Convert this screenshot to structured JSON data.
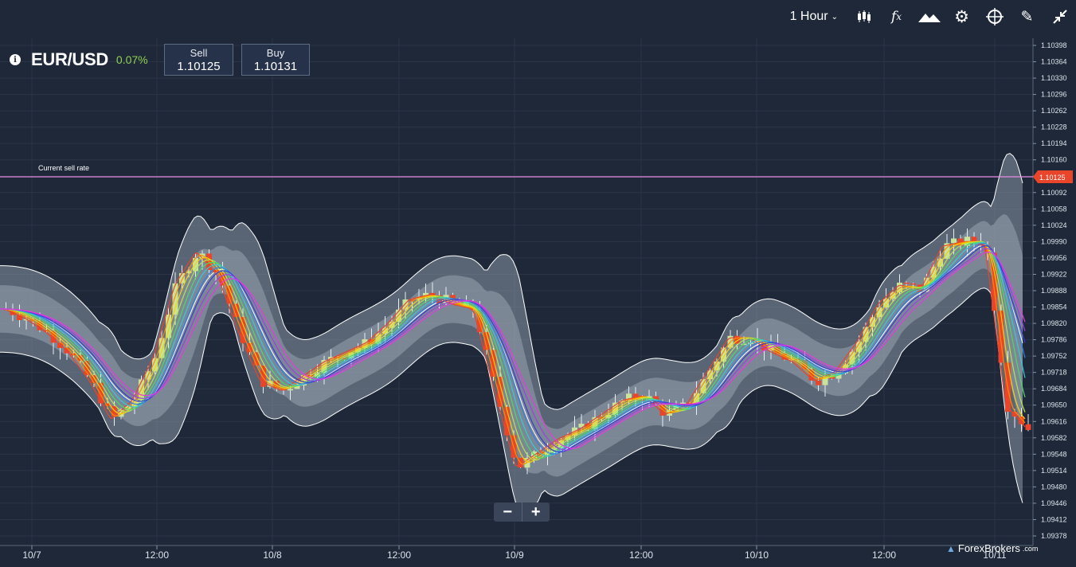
{
  "toolbar": {
    "timeframe": "1 Hour",
    "icons": [
      "candlestick-icon",
      "function-icon",
      "mountain-icon",
      "gear-icon",
      "crosshair-icon",
      "pencil-icon",
      "collapse-icon"
    ]
  },
  "instrument": {
    "symbol": "EUR/USD",
    "change": "0.07%",
    "sell_label": "Sell",
    "sell_price": "1.10125",
    "buy_label": "Buy",
    "buy_price": "1.10131"
  },
  "current_rate": {
    "label": "Current sell rate",
    "value": "1.10125",
    "line_color": "#e58ae6",
    "tag_color": "#e8452a"
  },
  "zoom": {
    "minus": "−",
    "plus": "+"
  },
  "brand": {
    "name": "ForexBrokers",
    "suffix": ".com"
  },
  "chart_data": {
    "type": "candlestick",
    "instrument": "EUR/USD",
    "interval": "1 Hour",
    "y_ticks": [
      "1.10398",
      "1.10364",
      "1.10330",
      "1.10296",
      "1.10262",
      "1.10228",
      "1.10194",
      "1.10160",
      "1.10126",
      "1.10092",
      "1.10058",
      "1.10024",
      "1.09990",
      "1.09956",
      "1.09922",
      "1.09888",
      "1.09854",
      "1.09820",
      "1.09786",
      "1.09752",
      "1.09718",
      "1.09684",
      "1.09650",
      "1.09616",
      "1.09582",
      "1.09548",
      "1.09514",
      "1.09480",
      "1.09446",
      "1.09412",
      "1.09378"
    ],
    "x_ticks": [
      "10/7",
      "12:00",
      "10/8",
      "12:00",
      "10/9",
      "12:00",
      "10/10",
      "12:00",
      "10/11"
    ],
    "ylim": [
      1.09378,
      1.10398
    ],
    "colors": {
      "up": "#c9e39a",
      "down": "#e8452a",
      "bands": "#ffffff"
    },
    "close_path": [
      1.0985,
      1.0983,
      1.098,
      1.0976,
      1.097,
      1.0962,
      1.0966,
      1.0975,
      1.099,
      1.0997,
      1.0992,
      1.098,
      1.097,
      1.0968,
      1.0971,
      1.0974,
      1.0976,
      1.0978,
      1.0982,
      1.0987,
      1.0988,
      1.0986,
      1.0985,
      1.0968,
      1.0952,
      1.0955,
      1.0958,
      1.096,
      1.0963,
      1.0966,
      1.0967,
      1.0963,
      1.0965,
      1.0972,
      1.0979,
      1.0979,
      1.0976,
      1.0974,
      1.097,
      1.0972,
      1.0978,
      1.0986,
      1.099,
      1.0989,
      1.0998,
      1.0999,
      1.0999,
      1.0965,
      1.096
    ]
  }
}
